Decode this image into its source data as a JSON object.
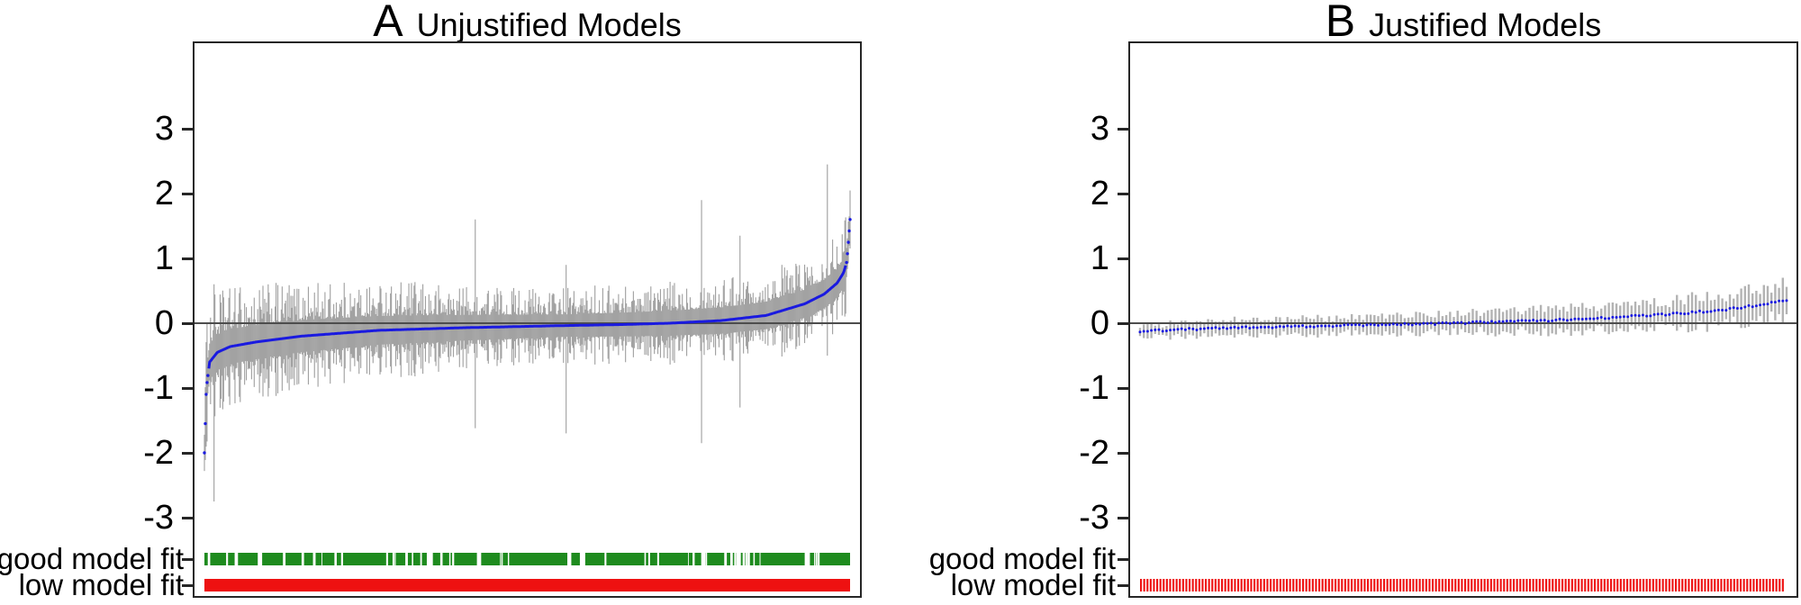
{
  "figure": {
    "row_labels": {
      "good": "good model fit",
      "low": "low model fit"
    },
    "y_ticks": [
      3,
      2,
      1,
      0,
      -1,
      -2,
      -3
    ],
    "colors": {
      "error_bar_gray_a": "#a2a2a2",
      "error_bar_gray_b": "#b3b3b3",
      "estimate_blue": "#1a1ae0",
      "good_fit_green": "#1e8b1e",
      "low_fit_red": "#ee1111",
      "zero_line": "#4d4d4d",
      "frame": "#262626",
      "text": "#000000"
    }
  },
  "chart_data": [
    {
      "type": "scatter",
      "subtype": "specification-curve-sorted-estimates-with-error-bars",
      "panel_label": "A",
      "title": "Unjustified Models",
      "ylabel": "",
      "yticks": [
        3,
        2,
        1,
        0,
        -1,
        -2,
        -3
      ],
      "ylim": [
        -4.25,
        4.3
      ],
      "grid": false,
      "n_models": 740,
      "zero_reference_line": 0,
      "estimate_curve": {
        "t": [
          0,
          0.003,
          0.008,
          0.02,
          0.04,
          0.08,
          0.15,
          0.27,
          0.4,
          0.54,
          0.65,
          0.72,
          0.8,
          0.87,
          0.93,
          0.96,
          0.98,
          0.99,
          0.995,
          1
        ],
        "v": [
          -2.0,
          -1.0,
          -0.6,
          -0.45,
          -0.36,
          -0.29,
          -0.2,
          -0.11,
          -0.07,
          -0.04,
          -0.02,
          0.0,
          0.04,
          0.12,
          0.3,
          0.45,
          0.62,
          0.78,
          0.95,
          1.6
        ]
      },
      "ci_halfwidth_typical": {
        "t": [
          0,
          0.25,
          0.55,
          0.8,
          1
        ],
        "v": [
          0.62,
          0.5,
          0.38,
          0.45,
          0.5
        ]
      },
      "outlier_bars": [
        {
          "t": 0.015,
          "top": 0.6,
          "bottom": -2.75
        },
        {
          "t": 0.42,
          "top": 1.6,
          "bottom": -1.62
        },
        {
          "t": 0.56,
          "top": 0.9,
          "bottom": -1.7
        },
        {
          "t": 0.77,
          "top": 1.9,
          "bottom": -1.85
        },
        {
          "t": 0.83,
          "top": 1.35,
          "bottom": -1.3
        },
        {
          "t": 0.965,
          "top": 2.45,
          "bottom": -0.5
        }
      ],
      "fit_markers": {
        "good_model_fit": {
          "present": true,
          "coverage": 0.96,
          "style": "dense-band-with-gaps"
        },
        "low_model_fit": {
          "present": true,
          "coverage": 1.0,
          "style": "solid-band"
        }
      }
    },
    {
      "type": "scatter",
      "subtype": "specification-curve-sorted-estimates-with-error-bars",
      "panel_label": "B",
      "title": "Justified Models",
      "ylabel": "",
      "yticks": [
        3,
        2,
        1,
        0,
        -1,
        -2,
        -3
      ],
      "ylim": [
        -4.25,
        4.3
      ],
      "grid": false,
      "n_models": 172,
      "zero_reference_line": 0,
      "estimate_curve": {
        "t": [
          0,
          0.05,
          0.15,
          0.3,
          0.45,
          0.55,
          0.65,
          0.75,
          0.82,
          0.9,
          0.95,
          1
        ],
        "v": [
          -0.13,
          -0.1,
          -0.07,
          -0.04,
          -0.01,
          0.02,
          0.05,
          0.1,
          0.14,
          0.2,
          0.27,
          0.36
        ]
      },
      "ci_halfwidth_typical": {
        "t": [
          0,
          0.5,
          0.8,
          1
        ],
        "v": [
          0.1,
          0.14,
          0.2,
          0.26
        ]
      },
      "outlier_bars": [],
      "fit_markers": {
        "good_model_fit": {
          "present": false,
          "coverage": 0.0,
          "style": "none"
        },
        "low_model_fit": {
          "present": true,
          "coverage": 1.0,
          "style": "striped-band"
        }
      }
    }
  ]
}
